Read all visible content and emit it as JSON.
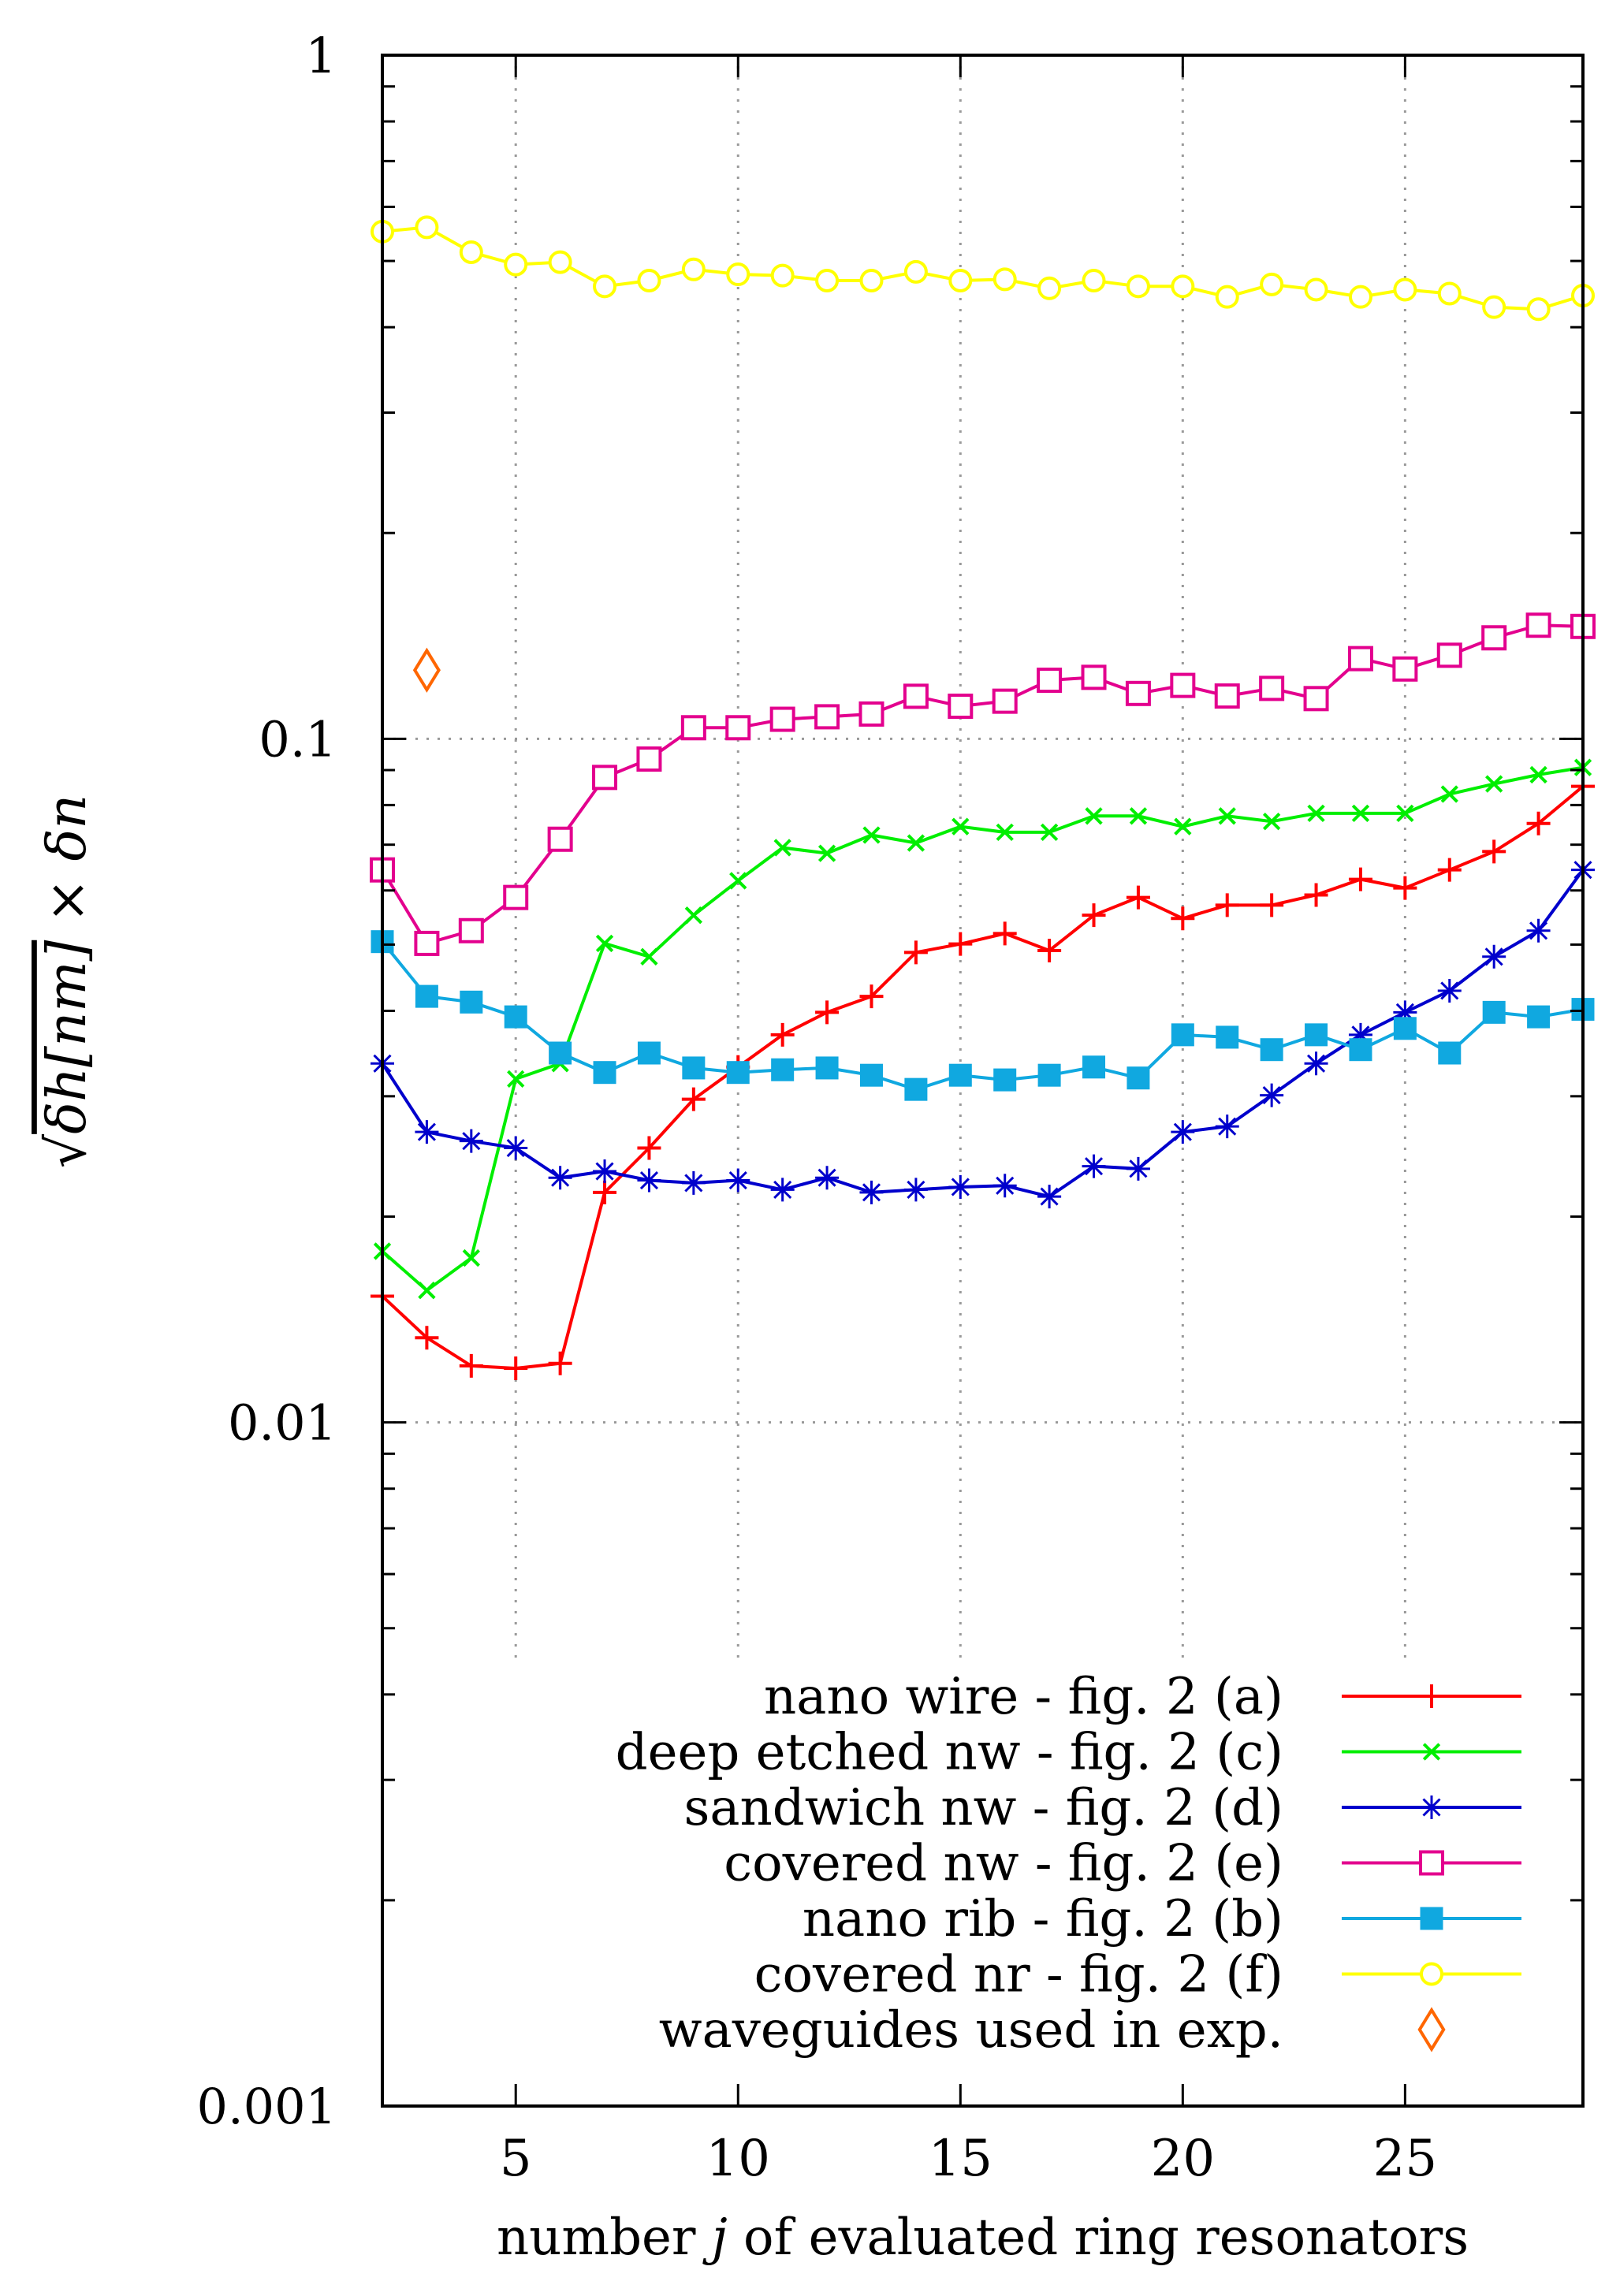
{
  "chart_data": {
    "type": "line",
    "title": "",
    "xlabel": "number j of evaluated ring resonators",
    "xlabel_parts": [
      "number ",
      "j",
      " of evaluated ring resonators"
    ],
    "ylabel": "√(δh[nm]) × δn",
    "ylabel_parts": {
      "radicand": "δh[nm]",
      "operator": "×",
      "tail": "δn"
    },
    "xlim": [
      2,
      29
    ],
    "ylim": [
      0.001,
      1
    ],
    "yscale": "log",
    "x_ticks": [
      5,
      10,
      15,
      20,
      25
    ],
    "y_ticks": [
      {
        "value": 0.001,
        "label": "0.001"
      },
      {
        "value": 0.01,
        "label": "0.01"
      },
      {
        "value": 0.1,
        "label": "0.1"
      },
      {
        "value": 1,
        "label": "1"
      }
    ],
    "grid": true,
    "legend_position": "bottom-right",
    "series": [
      {
        "name": "nano wire - fig. 2 (a)",
        "color": "#ff0000",
        "marker": "plus",
        "x": [
          2,
          3,
          4,
          5,
          6,
          7,
          8,
          9,
          10,
          11,
          12,
          13,
          14,
          15,
          16,
          17,
          18,
          19,
          20,
          21,
          22,
          23,
          24,
          25,
          26,
          27,
          28,
          29
        ],
        "values": [
          0.0153,
          0.0133,
          0.0121,
          0.012,
          0.0122,
          0.0217,
          0.0252,
          0.0297,
          0.0331,
          0.0369,
          0.0398,
          0.042,
          0.0487,
          0.0501,
          0.0519,
          0.049,
          0.0552,
          0.0586,
          0.0546,
          0.0571,
          0.0571,
          0.0591,
          0.0623,
          0.0605,
          0.0643,
          0.0684,
          0.0752,
          0.0852
        ]
      },
      {
        "name": "deep etched nw - fig. 2 (c)",
        "color": "#00ee00",
        "marker": "cross",
        "x": [
          2,
          3,
          4,
          5,
          6,
          7,
          8,
          9,
          10,
          11,
          12,
          13,
          14,
          15,
          16,
          17,
          18,
          19,
          20,
          21,
          22,
          23,
          24,
          25,
          26,
          27,
          28,
          29
        ],
        "values": [
          0.0178,
          0.0156,
          0.0174,
          0.0318,
          0.0335,
          0.0502,
          0.048,
          0.0552,
          0.062,
          0.0693,
          0.068,
          0.0723,
          0.0704,
          0.0744,
          0.073,
          0.073,
          0.0771,
          0.0771,
          0.0744,
          0.0771,
          0.0757,
          0.0778,
          0.0778,
          0.0778,
          0.083,
          0.0859,
          0.0886,
          0.0908
        ]
      },
      {
        "name": "sandwich nw - fig. 2 (d)",
        "color": "#0000cc",
        "marker": "star",
        "x": [
          2,
          3,
          4,
          5,
          6,
          7,
          8,
          9,
          10,
          11,
          12,
          13,
          14,
          15,
          16,
          17,
          18,
          19,
          20,
          21,
          22,
          23,
          24,
          25,
          26,
          27,
          28,
          29
        ],
        "values": [
          0.0335,
          0.0266,
          0.0258,
          0.0252,
          0.0228,
          0.0233,
          0.0226,
          0.0224,
          0.0226,
          0.0219,
          0.0228,
          0.0217,
          0.0219,
          0.0221,
          0.0222,
          0.0214,
          0.0237,
          0.0235,
          0.0266,
          0.0271,
          0.0301,
          0.0335,
          0.0369,
          0.0398,
          0.0428,
          0.048,
          0.0524,
          0.0643
        ]
      },
      {
        "name": "covered nw - fig. 2 (e)",
        "color": "#e3008e",
        "marker": "open-square",
        "x": [
          2,
          3,
          4,
          5,
          6,
          7,
          8,
          9,
          10,
          11,
          12,
          13,
          14,
          15,
          16,
          17,
          18,
          19,
          20,
          21,
          22,
          23,
          24,
          25,
          26,
          27,
          28,
          29
        ],
        "values": [
          0.0643,
          0.0502,
          0.0524,
          0.0586,
          0.0713,
          0.0878,
          0.0934,
          0.1038,
          0.1038,
          0.1068,
          0.1077,
          0.1087,
          0.1154,
          0.1116,
          0.1135,
          0.1218,
          0.123,
          0.1165,
          0.1197,
          0.1155,
          0.1185,
          0.1145,
          0.131,
          0.1265,
          0.1325,
          0.1405,
          0.1466,
          0.146
        ]
      },
      {
        "name": "nano rib - fig. 2 (b)",
        "color": "#10a8e0",
        "marker": "filled-square",
        "x": [
          2,
          3,
          4,
          5,
          6,
          7,
          8,
          9,
          10,
          11,
          12,
          13,
          14,
          15,
          16,
          17,
          18,
          19,
          20,
          21,
          22,
          23,
          24,
          25,
          26,
          27,
          28,
          29
        ],
        "values": [
          0.0505,
          0.042,
          0.0412,
          0.0392,
          0.0347,
          0.0325,
          0.0347,
          0.033,
          0.0325,
          0.0328,
          0.033,
          0.0322,
          0.0307,
          0.0322,
          0.0317,
          0.0322,
          0.0331,
          0.0319,
          0.0369,
          0.0366,
          0.0351,
          0.0369,
          0.0351,
          0.0377,
          0.0347,
          0.0398,
          0.0392,
          0.0402
        ]
      },
      {
        "name": "covered nr - fig. 2 (f)",
        "color": "#ffff00",
        "marker": "open-circle",
        "x": [
          2,
          3,
          4,
          5,
          6,
          7,
          8,
          9,
          10,
          11,
          12,
          13,
          14,
          15,
          16,
          17,
          18,
          19,
          20,
          21,
          22,
          23,
          24,
          25,
          26,
          27,
          28,
          29
        ],
        "values": [
          0.552,
          0.56,
          0.515,
          0.494,
          0.498,
          0.459,
          0.468,
          0.486,
          0.478,
          0.476,
          0.468,
          0.468,
          0.482,
          0.468,
          0.47,
          0.456,
          0.468,
          0.459,
          0.459,
          0.443,
          0.462,
          0.454,
          0.443,
          0.454,
          0.448,
          0.428,
          0.425,
          0.445
        ]
      },
      {
        "name": "waveguides used in exp.",
        "color": "#ff6600",
        "marker": "open-diamond",
        "x": [
          3
        ],
        "values": [
          0.126
        ]
      }
    ]
  }
}
